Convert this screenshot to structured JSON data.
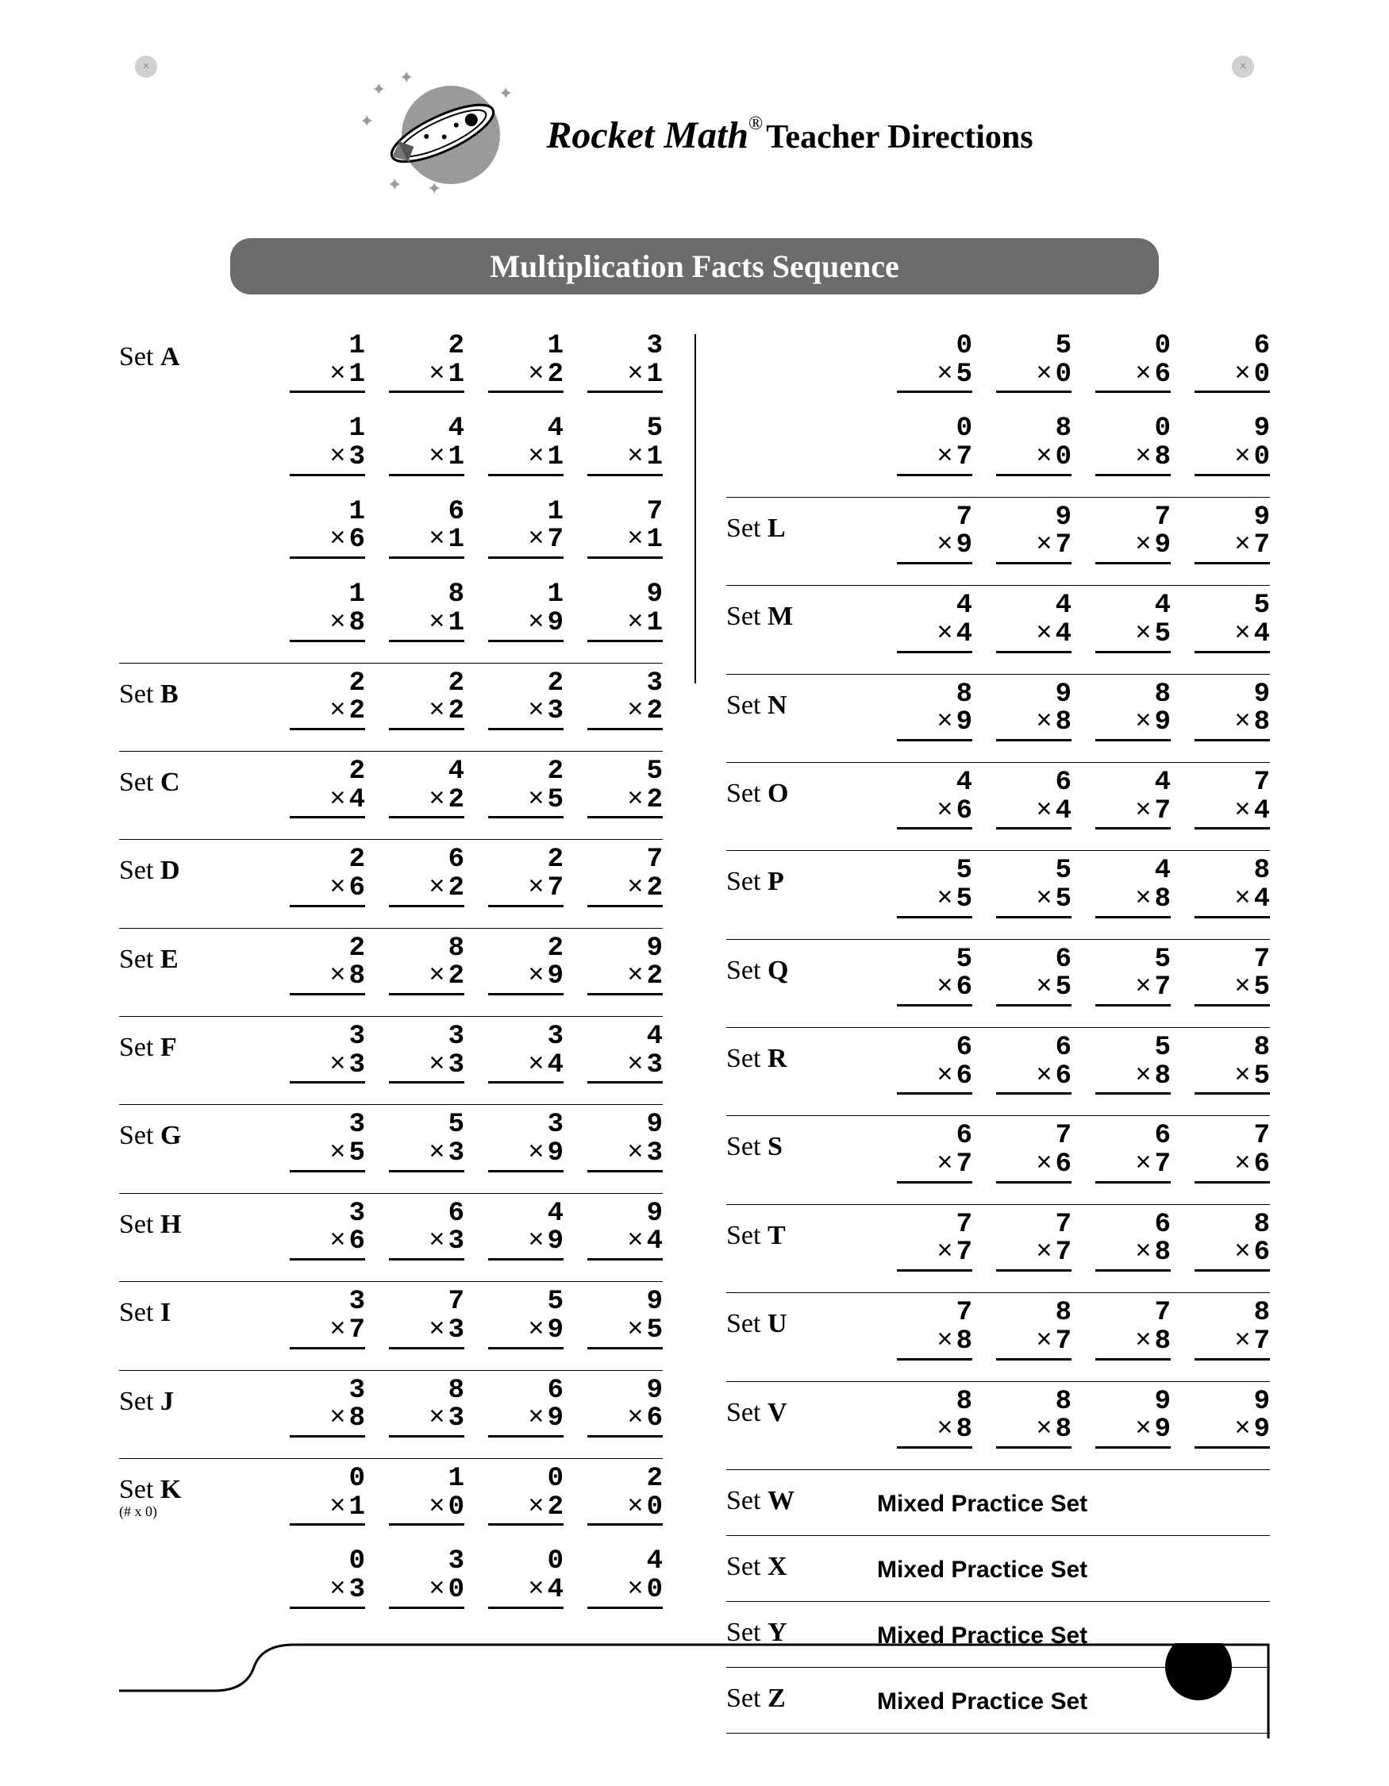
{
  "header": {
    "brand": "Rocket Math",
    "registered": "®",
    "title": "Teacher Directions"
  },
  "banner": "Multiplication Facts Sequence",
  "mixed_label": "Mixed Practice Set",
  "colors": {
    "banner_bg": "#6b6b6b",
    "banner_fg": "#ffffff",
    "logo_gray": "#9a9a9a",
    "rule": "#000000"
  },
  "left_sets": [
    {
      "id": "A",
      "label": "Set ",
      "bold": "A",
      "rows": [
        [
          [
            1,
            1
          ],
          [
            2,
            1
          ],
          [
            1,
            2
          ],
          [
            3,
            1
          ]
        ],
        [
          [
            1,
            3
          ],
          [
            4,
            1
          ],
          [
            4,
            1
          ],
          [
            5,
            1
          ]
        ],
        [
          [
            1,
            6
          ],
          [
            6,
            1
          ],
          [
            1,
            7
          ],
          [
            7,
            1
          ]
        ],
        [
          [
            1,
            8
          ],
          [
            8,
            1
          ],
          [
            1,
            9
          ],
          [
            9,
            1
          ]
        ]
      ]
    },
    {
      "id": "B",
      "label": "Set ",
      "bold": "B",
      "rows": [
        [
          [
            2,
            2
          ],
          [
            2,
            2
          ],
          [
            2,
            3
          ],
          [
            3,
            2
          ]
        ]
      ]
    },
    {
      "id": "C",
      "label": "Set ",
      "bold": "C",
      "rows": [
        [
          [
            2,
            4
          ],
          [
            4,
            2
          ],
          [
            2,
            5
          ],
          [
            5,
            2
          ]
        ]
      ]
    },
    {
      "id": "D",
      "label": "Set ",
      "bold": "D",
      "rows": [
        [
          [
            2,
            6
          ],
          [
            6,
            2
          ],
          [
            2,
            7
          ],
          [
            7,
            2
          ]
        ]
      ]
    },
    {
      "id": "E",
      "label": "Set ",
      "bold": "E",
      "rows": [
        [
          [
            2,
            8
          ],
          [
            8,
            2
          ],
          [
            2,
            9
          ],
          [
            9,
            2
          ]
        ]
      ]
    },
    {
      "id": "F",
      "label": "Set ",
      "bold": "F",
      "rows": [
        [
          [
            3,
            3
          ],
          [
            3,
            3
          ],
          [
            3,
            4
          ],
          [
            4,
            3
          ]
        ]
      ]
    },
    {
      "id": "G",
      "label": "Set ",
      "bold": "G",
      "rows": [
        [
          [
            3,
            5
          ],
          [
            5,
            3
          ],
          [
            3,
            9
          ],
          [
            9,
            3
          ]
        ]
      ]
    },
    {
      "id": "H",
      "label": "Set ",
      "bold": "H",
      "rows": [
        [
          [
            3,
            6
          ],
          [
            6,
            3
          ],
          [
            4,
            9
          ],
          [
            9,
            4
          ]
        ]
      ]
    },
    {
      "id": "I",
      "label": "Set ",
      "bold": "I",
      "rows": [
        [
          [
            3,
            7
          ],
          [
            7,
            3
          ],
          [
            5,
            9
          ],
          [
            9,
            5
          ]
        ]
      ]
    },
    {
      "id": "J",
      "label": "Set ",
      "bold": "J",
      "rows": [
        [
          [
            3,
            8
          ],
          [
            8,
            3
          ],
          [
            6,
            9
          ],
          [
            9,
            6
          ]
        ]
      ]
    },
    {
      "id": "K",
      "label": "Set ",
      "bold": "K",
      "sub": "(# x 0)",
      "noborder": true,
      "rows": [
        [
          [
            0,
            1
          ],
          [
            1,
            0
          ],
          [
            0,
            2
          ],
          [
            2,
            0
          ]
        ],
        [
          [
            0,
            3
          ],
          [
            3,
            0
          ],
          [
            0,
            4
          ],
          [
            4,
            0
          ]
        ]
      ]
    }
  ],
  "right_sets": [
    {
      "id": "K2",
      "label": "",
      "bold": "",
      "rows": [
        [
          [
            0,
            5
          ],
          [
            5,
            0
          ],
          [
            0,
            6
          ],
          [
            6,
            0
          ]
        ],
        [
          [
            0,
            7
          ],
          [
            8,
            0
          ],
          [
            0,
            8
          ],
          [
            9,
            0
          ]
        ]
      ]
    },
    {
      "id": "L",
      "label": "Set ",
      "bold": "L",
      "rows": [
        [
          [
            7,
            9
          ],
          [
            9,
            7
          ],
          [
            7,
            9
          ],
          [
            9,
            7
          ]
        ]
      ]
    },
    {
      "id": "M",
      "label": "Set ",
      "bold": "M",
      "rows": [
        [
          [
            4,
            4
          ],
          [
            4,
            4
          ],
          [
            4,
            5
          ],
          [
            5,
            4
          ]
        ]
      ]
    },
    {
      "id": "N",
      "label": "Set ",
      "bold": "N",
      "rows": [
        [
          [
            8,
            9
          ],
          [
            9,
            8
          ],
          [
            8,
            9
          ],
          [
            9,
            8
          ]
        ]
      ]
    },
    {
      "id": "O",
      "label": "Set ",
      "bold": "O",
      "rows": [
        [
          [
            4,
            6
          ],
          [
            6,
            4
          ],
          [
            4,
            7
          ],
          [
            7,
            4
          ]
        ]
      ]
    },
    {
      "id": "P",
      "label": "Set ",
      "bold": "P",
      "rows": [
        [
          [
            5,
            5
          ],
          [
            5,
            5
          ],
          [
            4,
            8
          ],
          [
            8,
            4
          ]
        ]
      ]
    },
    {
      "id": "Q",
      "label": "Set ",
      "bold": "Q",
      "rows": [
        [
          [
            5,
            6
          ],
          [
            6,
            5
          ],
          [
            5,
            7
          ],
          [
            7,
            5
          ]
        ]
      ]
    },
    {
      "id": "R",
      "label": "Set ",
      "bold": "R",
      "rows": [
        [
          [
            6,
            6
          ],
          [
            6,
            6
          ],
          [
            5,
            8
          ],
          [
            8,
            5
          ]
        ]
      ]
    },
    {
      "id": "S",
      "label": "Set ",
      "bold": "S",
      "rows": [
        [
          [
            6,
            7
          ],
          [
            7,
            6
          ],
          [
            6,
            7
          ],
          [
            7,
            6
          ]
        ]
      ]
    },
    {
      "id": "T",
      "label": "Set ",
      "bold": "T",
      "rows": [
        [
          [
            7,
            7
          ],
          [
            7,
            7
          ],
          [
            6,
            8
          ],
          [
            8,
            6
          ]
        ]
      ]
    },
    {
      "id": "U",
      "label": "Set ",
      "bold": "U",
      "rows": [
        [
          [
            7,
            8
          ],
          [
            8,
            7
          ],
          [
            7,
            8
          ],
          [
            8,
            7
          ]
        ]
      ]
    },
    {
      "id": "V",
      "label": "Set ",
      "bold": "V",
      "rows": [
        [
          [
            8,
            8
          ],
          [
            8,
            8
          ],
          [
            9,
            9
          ],
          [
            9,
            9
          ]
        ]
      ]
    },
    {
      "id": "W",
      "label": "Set ",
      "bold": "W",
      "mixed": true
    },
    {
      "id": "X",
      "label": "Set ",
      "bold": "X",
      "mixed": true
    },
    {
      "id": "Y",
      "label": "Set ",
      "bold": "Y",
      "mixed": true
    },
    {
      "id": "Z",
      "label": "Set ",
      "bold": "Z",
      "mixed": true
    }
  ]
}
